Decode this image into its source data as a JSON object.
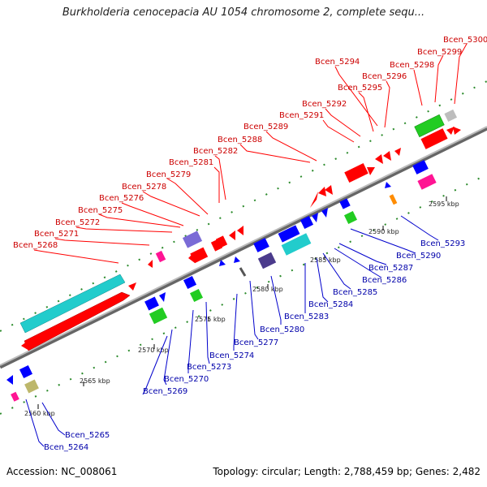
{
  "title": "Burkholderia cenocepacia AU 1054 chromosome 2, complete sequ...",
  "footer": {
    "accession": "Accession: NC_008061",
    "topology": "Topology: circular; Length: 2,788,459 bp; Genes: 2,482"
  },
  "colors": {
    "top_strand_label": "#cc0000",
    "bottom_strand_label": "#0000aa",
    "backbone": "#888888",
    "gene_red": "#ff0000",
    "gene_blue": "#0000ff",
    "gene_cyan": "#22cccc",
    "gene_green": "#22cc22",
    "gene_magenta": "#ff1493",
    "gene_purple": "#7a6bd6",
    "gene_darkpurple": "#4b3b8c",
    "gene_olive": "#bdb76b",
    "gene_gray": "#bdbdbd",
    "gene_orange": "#ff8c00",
    "tick_green": "#228b22"
  },
  "kbp_labels": [
    "2560 kbp",
    "2565 kbp",
    "2570 kbp",
    "2575 kbp",
    "2580 kbp",
    "2585 kbp",
    "2590 kbp",
    "2595 kbp"
  ],
  "top_labels": [
    "Bcen_5300",
    "Bcen_5299",
    "Bcen_5298",
    "Bcen_5294",
    "Bcen_5296",
    "Bcen_5295",
    "Bcen_5292",
    "Bcen_5291",
    "Bcen_5289",
    "Bcen_5288",
    "Bcen_5282",
    "Bcen_5281",
    "Bcen_5279",
    "Bcen_5278",
    "Bcen_5276",
    "Bcen_5275",
    "Bcen_5272",
    "Bcen_5271",
    "Bcen_5268"
  ],
  "bottom_labels": [
    "Bcen_5293",
    "Bcen_5290",
    "Bcen_5287",
    "Bcen_5286",
    "Bcen_5285",
    "Bcen_5284",
    "Bcen_5283",
    "Bcen_5280",
    "Bcen_5277",
    "Bcen_5274",
    "Bcen_5273",
    "Bcen_5270",
    "Bcen_5269",
    "Bcen_5265",
    "Bcen_5264"
  ]
}
